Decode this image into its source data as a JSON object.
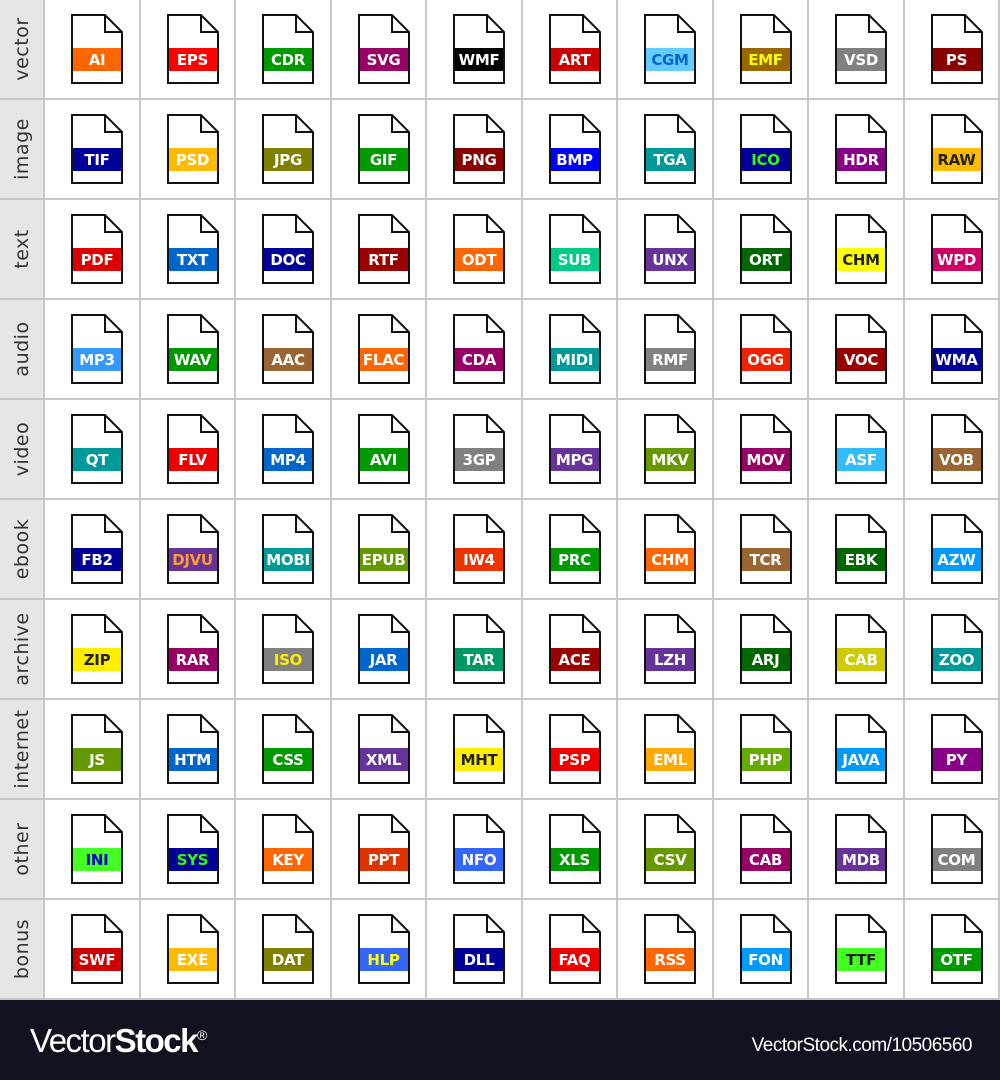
{
  "rows": [
    {
      "label": "vector",
      "files": [
        [
          "AI",
          "#ff6600",
          "#ffffff"
        ],
        [
          "EPS",
          "#ff0000",
          "#ffffff"
        ],
        [
          "CDR",
          "#009900",
          "#ffffff"
        ],
        [
          "SVG",
          "#990066",
          "#ffffff"
        ],
        [
          "WMF",
          "#000000",
          "#ffffff"
        ],
        [
          "ART",
          "#cc0000",
          "#ffffff"
        ],
        [
          "CGM",
          "#66ccff",
          "#0066cc"
        ],
        [
          "EMF",
          "#996600",
          "#ffff00"
        ],
        [
          "VSD",
          "#808080",
          "#ffffff"
        ],
        [
          "PS",
          "#880000",
          "#ffffff"
        ]
      ]
    },
    {
      "label": "image",
      "files": [
        [
          "TIF",
          "#000099",
          "#ffffff"
        ],
        [
          "PSD",
          "#ffbb00",
          "#ffffff"
        ],
        [
          "JPG",
          "#808000",
          "#ffffff"
        ],
        [
          "GIF",
          "#009900",
          "#ffffff"
        ],
        [
          "PNG",
          "#880000",
          "#ffffff"
        ],
        [
          "BMP",
          "#0000ff",
          "#ffffff"
        ],
        [
          "TGA",
          "#009999",
          "#ffffff"
        ],
        [
          "ICO",
          "#000099",
          "#33ff00"
        ],
        [
          "HDR",
          "#880088",
          "#ffffff"
        ],
        [
          "RAW",
          "#ffbb00",
          "#222222"
        ]
      ]
    },
    {
      "label": "text",
      "files": [
        [
          "PDF",
          "#dd0000",
          "#ffffff"
        ],
        [
          "TXT",
          "#0066cc",
          "#ffffff"
        ],
        [
          "DOC",
          "#000099",
          "#ffffff"
        ],
        [
          "RTF",
          "#990000",
          "#ffffff"
        ],
        [
          "ODT",
          "#ff6600",
          "#ffffff"
        ],
        [
          "SUB",
          "#00cc88",
          "#ffffff"
        ],
        [
          "UNX",
          "#663399",
          "#ffffff"
        ],
        [
          "ORT",
          "#006600",
          "#ffffff"
        ],
        [
          "CHM",
          "#ffff00",
          "#222222"
        ],
        [
          "WPD",
          "#cc0066",
          "#ffffff"
        ]
      ]
    },
    {
      "label": "audio",
      "files": [
        [
          "MP3",
          "#3399ff",
          "#ffffff"
        ],
        [
          "WAV",
          "#009900",
          "#ffffff"
        ],
        [
          "AAC",
          "#996633",
          "#ffffff"
        ],
        [
          "FLAC",
          "#ff6600",
          "#ffffff"
        ],
        [
          "CDA",
          "#990066",
          "#ffffff"
        ],
        [
          "MIDI",
          "#009999",
          "#ffffff"
        ],
        [
          "RMF",
          "#808080",
          "#ffffff"
        ],
        [
          "OGG",
          "#ee2200",
          "#ffffff"
        ],
        [
          "VOC",
          "#990000",
          "#ffffff"
        ],
        [
          "WMA",
          "#000099",
          "#ffffff"
        ]
      ]
    },
    {
      "label": "video",
      "files": [
        [
          "QT",
          "#009999",
          "#ffffff"
        ],
        [
          "FLV",
          "#ee0000",
          "#ffffff"
        ],
        [
          "MP4",
          "#0066cc",
          "#ffffff"
        ],
        [
          "AVI",
          "#009900",
          "#ffffff"
        ],
        [
          "3GP",
          "#808080",
          "#ffffff"
        ],
        [
          "MPG",
          "#663399",
          "#ffffff"
        ],
        [
          "MKV",
          "#669900",
          "#ffffff"
        ],
        [
          "MOV",
          "#990066",
          "#ffffff"
        ],
        [
          "ASF",
          "#33bbff",
          "#ffffff"
        ],
        [
          "VOB",
          "#996633",
          "#ffffff"
        ]
      ]
    },
    {
      "label": "ebook",
      "files": [
        [
          "FB2",
          "#000099",
          "#ffffff"
        ],
        [
          "DJVU",
          "#663399",
          "#ff9933"
        ],
        [
          "MOBI",
          "#009999",
          "#ffffff"
        ],
        [
          "EPUB",
          "#669900",
          "#ffffff"
        ],
        [
          "IW4",
          "#ee3300",
          "#ffffff"
        ],
        [
          "PRC",
          "#009900",
          "#ffffff"
        ],
        [
          "CHM",
          "#ff6600",
          "#ffffff"
        ],
        [
          "TCR",
          "#996633",
          "#ffffff"
        ],
        [
          "EBK",
          "#006600",
          "#ffffff"
        ],
        [
          "AZW",
          "#0099ff",
          "#ffffff"
        ]
      ]
    },
    {
      "label": "archive",
      "files": [
        [
          "ZIP",
          "#ffee00",
          "#222222"
        ],
        [
          "RAR",
          "#990066",
          "#ffffff"
        ],
        [
          "ISO",
          "#808080",
          "#ffee00"
        ],
        [
          "JAR",
          "#0066cc",
          "#ffffff"
        ],
        [
          "TAR",
          "#009966",
          "#ffffff"
        ],
        [
          "ACE",
          "#990000",
          "#ffffff"
        ],
        [
          "LZH",
          "#663399",
          "#ffffff"
        ],
        [
          "ARJ",
          "#006600",
          "#ffffff"
        ],
        [
          "CAB",
          "#cccc00",
          "#ffffff"
        ],
        [
          "ZOO",
          "#009999",
          "#ffffff"
        ]
      ]
    },
    {
      "label": "internet",
      "files": [
        [
          "JS",
          "#669900",
          "#ffffff"
        ],
        [
          "HTM",
          "#0066cc",
          "#ffffff"
        ],
        [
          "CSS",
          "#009900",
          "#ffffff"
        ],
        [
          "XML",
          "#663399",
          "#ffffff"
        ],
        [
          "MHT",
          "#ffee00",
          "#222222"
        ],
        [
          "PSP",
          "#ee0000",
          "#ffffff"
        ],
        [
          "EML",
          "#ffaa00",
          "#ffffff"
        ],
        [
          "PHP",
          "#66aa00",
          "#ffffff"
        ],
        [
          "JAVA",
          "#0099ff",
          "#ffffff"
        ],
        [
          "PY",
          "#880088",
          "#ffffff"
        ]
      ]
    },
    {
      "label": "other",
      "files": [
        [
          "INI",
          "#44ff22",
          "#0000cc"
        ],
        [
          "SYS",
          "#000099",
          "#33ff00"
        ],
        [
          "KEY",
          "#ff6600",
          "#ffffff"
        ],
        [
          "PPT",
          "#dd3300",
          "#ffffff"
        ],
        [
          "NFO",
          "#3366ff",
          "#ffffff"
        ],
        [
          "XLS",
          "#009900",
          "#ffffff"
        ],
        [
          "CSV",
          "#669900",
          "#ffffff"
        ],
        [
          "CAB",
          "#990066",
          "#ffffff"
        ],
        [
          "MDB",
          "#663399",
          "#ffffff"
        ],
        [
          "COM",
          "#808080",
          "#ffffff"
        ]
      ]
    },
    {
      "label": "bonus",
      "files": [
        [
          "SWF",
          "#cc0000",
          "#ffffff"
        ],
        [
          "EXE",
          "#ffbb00",
          "#ffffff"
        ],
        [
          "DAT",
          "#808000",
          "#ffffff"
        ],
        [
          "HLP",
          "#3366ff",
          "#ffff00"
        ],
        [
          "DLL",
          "#000099",
          "#ffffff"
        ],
        [
          "FAQ",
          "#ee0000",
          "#ffffff"
        ],
        [
          "RSS",
          "#ff6600",
          "#ffffff"
        ],
        [
          "FON",
          "#0099ff",
          "#ffffff"
        ],
        [
          "TTF",
          "#44ff22",
          "#222222"
        ],
        [
          "OTF",
          "#009900",
          "#ffffff"
        ]
      ]
    }
  ],
  "footer": {
    "logo_light": "Vector",
    "logo_bold": "Stock",
    "logo_mark": "®",
    "url": "VectorStock.com/10506560"
  }
}
